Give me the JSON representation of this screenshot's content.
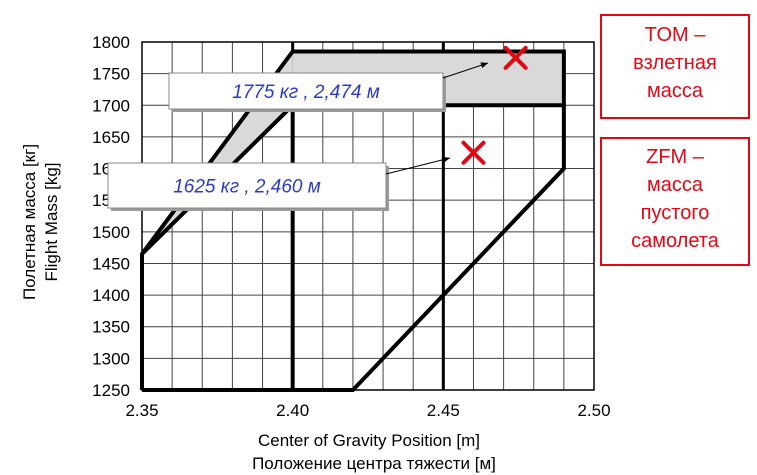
{
  "chart_data": {
    "type": "line",
    "xlabel": "Center of Gravity Position [m]",
    "xlabel_ru": "Положение центра тяжести [м]",
    "ylabel": "Flight Mass [kg]",
    "ylabel_ru": "Полетная масса [кг]",
    "xlim": [
      2.35,
      2.5
    ],
    "ylim": [
      1250,
      1800
    ],
    "x_ticks": [
      "2.35",
      "2.40",
      "2.45",
      "2.50"
    ],
    "y_ticks": [
      "1250",
      "1300",
      "1350",
      "1400",
      "1450",
      "1500",
      "1550",
      "1600",
      "1650",
      "1700",
      "1750",
      "1800"
    ],
    "grid": true,
    "series": [
      {
        "kind": "outer-envelope",
        "x": [
          2.35,
          2.35,
          2.4,
          2.49,
          2.49,
          2.42,
          2.35
        ],
        "y": [
          1250,
          1465,
          1785,
          1785,
          1600,
          1250,
          1250
        ]
      },
      {
        "kind": "inner-boundary",
        "x": [
          2.35,
          2.4,
          2.4
        ],
        "y": [
          1465,
          1700,
          1250
        ]
      },
      {
        "kind": "takeoff-region-boundary",
        "x": [
          2.4,
          2.49
        ],
        "y": [
          1700,
          1700
        ]
      }
    ],
    "points": [
      {
        "id": "tom",
        "x": 2.474,
        "y": 1775,
        "label": "1775 кг , 2,474 м"
      },
      {
        "id": "zfm",
        "x": 2.46,
        "y": 1625,
        "label": "1625 кг , 2,460 м"
      }
    ],
    "legend": [
      {
        "id": "tom",
        "lines": [
          "TOM –",
          "взлетная",
          "масса"
        ]
      },
      {
        "id": "zfm",
        "lines": [
          "ZFM –",
          "масса",
          "пустого",
          "самолета"
        ]
      }
    ],
    "colors": {
      "marker": "#e30613",
      "callout_text": "#2b3cc4",
      "shade": "#d9d9d9",
      "legend_border": "#e30613"
    }
  }
}
